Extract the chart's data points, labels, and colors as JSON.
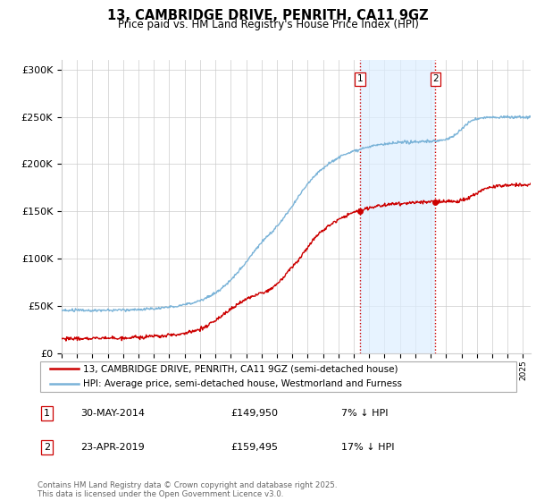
{
  "title": "13, CAMBRIDGE DRIVE, PENRITH, CA11 9GZ",
  "subtitle": "Price paid vs. HM Land Registry's House Price Index (HPI)",
  "ylabel_ticks": [
    "£0",
    "£50K",
    "£100K",
    "£150K",
    "£200K",
    "£250K",
    "£300K"
  ],
  "ytick_values": [
    0,
    50000,
    100000,
    150000,
    200000,
    250000,
    300000
  ],
  "ylim": [
    0,
    310000
  ],
  "xlim_start": 1995.0,
  "xlim_end": 2025.5,
  "hpi_color": "#7ab3d8",
  "price_color": "#cc0000",
  "vline_color": "#cc0000",
  "marker1_x": 2014.42,
  "marker1_y": 149950,
  "marker2_x": 2019.31,
  "marker2_y": 159495,
  "marker1_label": "30-MAY-2014",
  "marker1_price": "£149,950",
  "marker1_hpi": "7% ↓ HPI",
  "marker2_label": "23-APR-2019",
  "marker2_price": "£159,495",
  "marker2_hpi": "17% ↓ HPI",
  "legend_line1": "13, CAMBRIDGE DRIVE, PENRITH, CA11 9GZ (semi-detached house)",
  "legend_line2": "HPI: Average price, semi-detached house, Westmorland and Furness",
  "footer": "Contains HM Land Registry data © Crown copyright and database right 2025.\nThis data is licensed under the Open Government Licence v3.0.",
  "bg_color": "#ffffff",
  "grid_color": "#cccccc",
  "highlight_fill": "#ddeeff"
}
